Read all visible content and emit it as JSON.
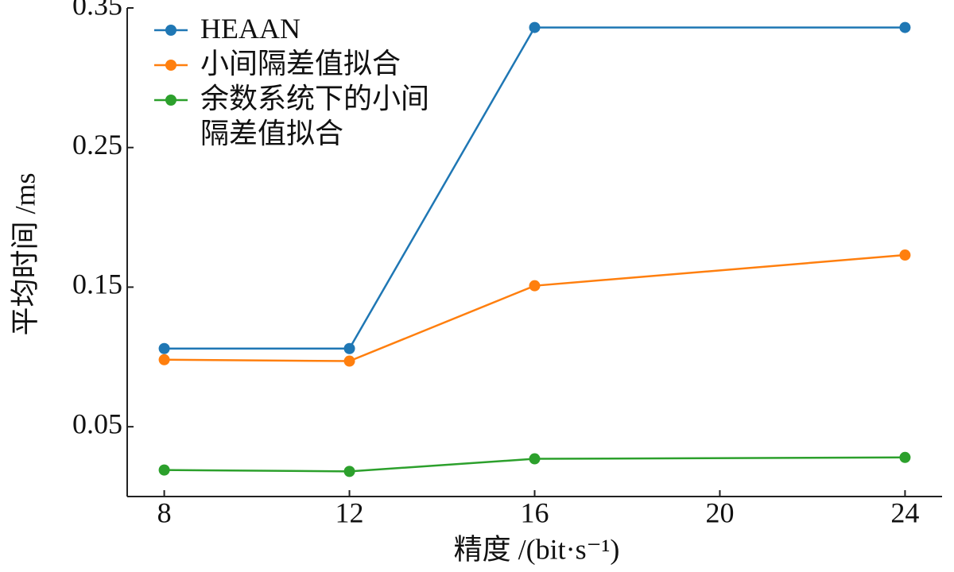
{
  "chart_data": {
    "type": "line",
    "x_label": "精度 /(bit·s⁻¹)",
    "y_label": "平均时间 /ms",
    "x": [
      8,
      12,
      16,
      24
    ],
    "xlim": [
      7.2,
      24.8
    ],
    "xticks": [
      8,
      12,
      16,
      20,
      24
    ],
    "ylim": [
      0,
      0.35
    ],
    "yticks": [
      0.05,
      0.15,
      0.25,
      0.35
    ],
    "legend": "upper left",
    "series": [
      {
        "name": "HEAAN",
        "color": "#1f77b4",
        "values": [
          0.106,
          0.106,
          0.336,
          0.336
        ]
      },
      {
        "name": "小间隔差值拟合",
        "color": "#ff7f0e",
        "values": [
          0.098,
          0.097,
          0.151,
          0.173
        ]
      },
      {
        "name": "余数系统下的小间隔差值拟合",
        "color": "#2ca02c",
        "values": [
          0.019,
          0.018,
          0.027,
          0.028
        ]
      }
    ]
  }
}
